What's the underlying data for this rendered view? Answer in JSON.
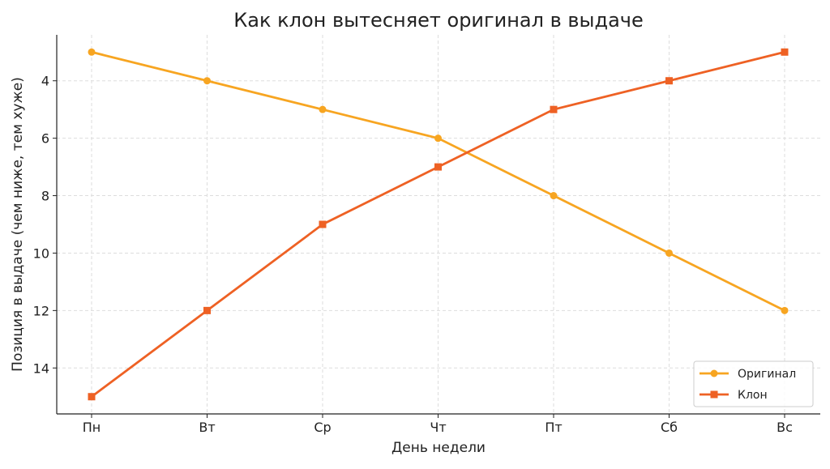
{
  "chart_data": {
    "type": "line",
    "title": "Как клон вытесняет оригинал в выдаче",
    "xlabel": "День недели",
    "ylabel": "Позиция в выдаче (чем ниже, тем хуже)",
    "categories": [
      "Пн",
      "Вт",
      "Ср",
      "Чт",
      "Пт",
      "Сб",
      "Вс"
    ],
    "series": [
      {
        "name": "Оригинал",
        "values": [
          3,
          4,
          5,
          6,
          8,
          10,
          12
        ],
        "color": "#F7A521",
        "marker": "circle"
      },
      {
        "name": "Клон",
        "values": [
          15,
          12,
          9,
          7,
          5,
          4,
          3
        ],
        "color": "#EE6124",
        "marker": "square"
      }
    ],
    "yticks": [
      4,
      6,
      8,
      10,
      12,
      14
    ],
    "ylim": [
      2.4,
      15.6
    ],
    "y_inverted": true,
    "grid": true,
    "legend_position": "bottom-right"
  }
}
